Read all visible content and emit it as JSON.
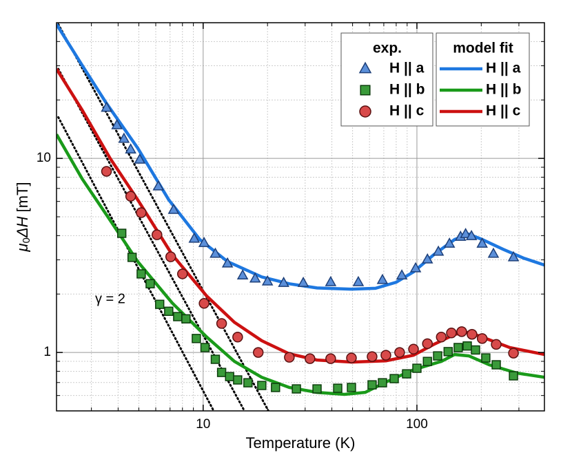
{
  "chart_data": {
    "type": "scatter",
    "xlabel": "Temperature (K)",
    "ylabel": [
      "μ",
      "0",
      "ΔH",
      " [mT]"
    ],
    "annotation": "γ = 2",
    "xlog": true,
    "ylog": true,
    "grid": true,
    "xlim": [
      2.06,
      395
    ],
    "ylim": [
      0.5,
      50
    ],
    "xticks": [
      10,
      100
    ],
    "yticks": [
      1,
      10
    ],
    "xminor": [
      3,
      4,
      5,
      6,
      7,
      8,
      9,
      20,
      30,
      40,
      50,
      60,
      70,
      80,
      90,
      200,
      300
    ],
    "yminor": [
      0.6,
      0.7,
      0.8,
      0.9,
      2,
      3,
      4,
      5,
      6,
      7,
      8,
      9,
      20,
      30,
      40
    ],
    "exp_legend_title": "exp.",
    "fit_legend_title": "model fit",
    "series": [
      {
        "name": "H || a",
        "marker": "triangle",
        "color": "#5b8fd9",
        "edge": "#1d3f78",
        "x": [
          3.53,
          3.95,
          4.26,
          4.58,
          5.05,
          6.17,
          7.27,
          9.08,
          10.1,
          11.4,
          13.0,
          15.3,
          17.5,
          20.0,
          23.8,
          29.4,
          39.5,
          53.2,
          69.0,
          85,
          98.6,
          112,
          126,
          142,
          160,
          169,
          180,
          202,
          228,
          283
        ],
        "values": [
          18.2,
          14.8,
          12.6,
          11.1,
          9.84,
          7.16,
          5.42,
          3.85,
          3.66,
          3.22,
          2.87,
          2.49,
          2.4,
          2.32,
          2.28,
          2.28,
          2.3,
          2.3,
          2.36,
          2.49,
          2.71,
          3.01,
          3.3,
          3.63,
          3.94,
          4.07,
          3.97,
          3.63,
          3.22,
          3.09
        ]
      },
      {
        "name": "H || b",
        "marker": "square",
        "color": "#3a9a3a",
        "edge": "#0c3d0c",
        "x": [
          4.16,
          4.65,
          5.13,
          5.65,
          6.26,
          6.9,
          7.6,
          8.31,
          9.29,
          10.2,
          11.4,
          12.2,
          13.3,
          14.5,
          16.2,
          18.8,
          21.8,
          27.3,
          34.1,
          42.6,
          49.4,
          61.7,
          69.0,
          78.3,
          89.5,
          100,
          112,
          125,
          140,
          156,
          172,
          188,
          210,
          235,
          283
        ],
        "values": [
          4.11,
          3.09,
          2.54,
          2.26,
          1.77,
          1.63,
          1.53,
          1.49,
          1.18,
          1.06,
          0.922,
          0.789,
          0.751,
          0.722,
          0.698,
          0.676,
          0.66,
          0.649,
          0.649,
          0.654,
          0.66,
          0.681,
          0.698,
          0.733,
          0.776,
          0.829,
          0.899,
          0.96,
          1.01,
          1.06,
          1.08,
          1.03,
          0.937,
          0.864,
          0.758
        ]
      },
      {
        "name": "H || c",
        "marker": "circle",
        "color": "#d84a4a",
        "edge": "#5a1010",
        "x": [
          3.53,
          4.58,
          5.13,
          6.08,
          7.05,
          8.0,
          10.1,
          12.2,
          14.5,
          18.1,
          25.3,
          31.6,
          39.5,
          49.4,
          61.7,
          71.6,
          83.0,
          96.4,
          112,
          130,
          145,
          162,
          181,
          202,
          235,
          283
        ],
        "values": [
          8.57,
          6.38,
          5.25,
          4.04,
          3.11,
          2.54,
          1.79,
          1.41,
          1.2,
          1.0,
          0.944,
          0.929,
          0.929,
          0.937,
          0.952,
          0.968,
          1.0,
          1.04,
          1.11,
          1.2,
          1.26,
          1.28,
          1.24,
          1.18,
          1.1,
          0.992
        ]
      }
    ],
    "fits": [
      {
        "name": "H || a",
        "color": "#1e78e0",
        "x": [
          2.06,
          2.72,
          3.53,
          4.94,
          6.9,
          9.64,
          13.0,
          18.8,
          25.3,
          34.1,
          49.4,
          64.0,
          80.0,
          96.4,
          120,
          150,
          175,
          202,
          253,
          316,
          395
        ],
        "values": [
          49.1,
          30.1,
          19.2,
          11.3,
          6.12,
          3.82,
          2.94,
          2.45,
          2.26,
          2.15,
          2.12,
          2.14,
          2.3,
          2.6,
          3.19,
          3.82,
          4.07,
          3.82,
          3.4,
          3.06,
          2.82
        ]
      },
      {
        "name": "H || b",
        "color": "#1a9a1a",
        "x": [
          2.06,
          2.72,
          3.67,
          4.94,
          7.16,
          10.4,
          14.0,
          18.8,
          25.3,
          34.1,
          45.8,
          57.3,
          71.6,
          96.4,
          130,
          150,
          175,
          218,
          294,
          395
        ],
        "values": [
          13.3,
          7.83,
          4.8,
          2.94,
          1.8,
          1.2,
          0.899,
          0.745,
          0.66,
          0.623,
          0.608,
          0.623,
          0.704,
          0.815,
          0.899,
          0.976,
          0.96,
          0.864,
          0.783,
          0.745
        ]
      },
      {
        "name": "H || c",
        "color": "#cc1111",
        "x": [
          2.06,
          2.72,
          3.67,
          4.94,
          7.16,
          10.4,
          14.0,
          18.8,
          25.3,
          34.1,
          49.4,
          71.6,
          96.4,
          120,
          150,
          175,
          202,
          272,
          395
        ],
        "values": [
          28.9,
          17.7,
          10.0,
          6.12,
          3.19,
          1.95,
          1.43,
          1.15,
          0.984,
          0.914,
          0.892,
          0.906,
          0.968,
          1.1,
          1.24,
          1.27,
          1.2,
          1.06,
          0.976
        ]
      }
    ],
    "guides": [
      {
        "x": [
          2.1,
          11.2
        ],
        "values": [
          16.3,
          0.5
        ]
      },
      {
        "x": [
          2.1,
          15.6
        ],
        "values": [
          28.9,
          0.5
        ]
      },
      {
        "x": [
          2.1,
          20.2
        ],
        "values": [
          49.1,
          0.5
        ]
      }
    ]
  }
}
